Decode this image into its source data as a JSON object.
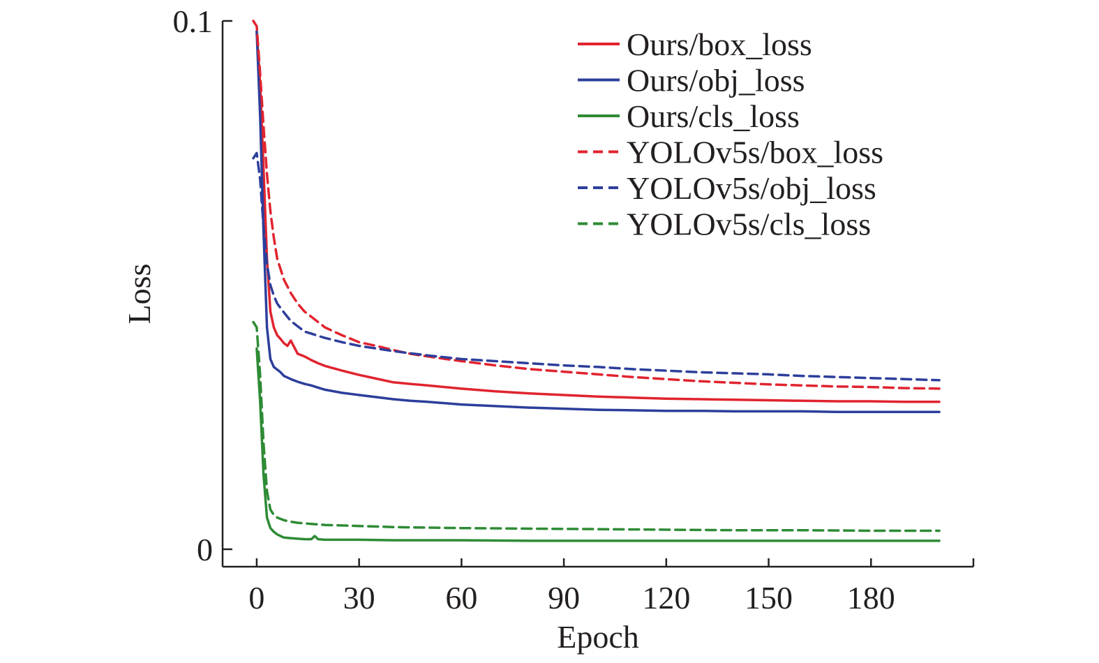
{
  "chart_data": {
    "type": "line",
    "xlabel": "Epoch",
    "ylabel": "Loss",
    "xlim": [
      -10,
      210
    ],
    "ylim": [
      -0.0035,
      0.1
    ],
    "xticks": [
      0,
      30,
      60,
      90,
      120,
      150,
      180
    ],
    "yticks": [
      {
        "value": 0,
        "label": "0"
      },
      {
        "value": 0.1,
        "label": "0.1"
      }
    ],
    "grid": false,
    "legend_position": "top-right",
    "series": [
      {
        "name": "Ours/box_loss",
        "color": "#e0242f",
        "dash": "solid",
        "x": [
          0,
          1,
          2,
          3,
          4,
          5,
          6,
          7,
          8,
          9,
          10,
          12,
          14,
          16,
          18,
          20,
          25,
          30,
          35,
          40,
          45,
          50,
          60,
          70,
          80,
          90,
          100,
          110,
          120,
          130,
          140,
          150,
          160,
          170,
          180,
          190,
          200
        ],
        "y": [
          0.098,
          0.088,
          0.072,
          0.055,
          0.045,
          0.042,
          0.0405,
          0.0398,
          0.039,
          0.0385,
          0.0395,
          0.037,
          0.0365,
          0.0358,
          0.0352,
          0.0347,
          0.0338,
          0.033,
          0.0323,
          0.0316,
          0.0313,
          0.031,
          0.0304,
          0.0299,
          0.0295,
          0.0292,
          0.0289,
          0.0287,
          0.0285,
          0.0284,
          0.0283,
          0.0282,
          0.0281,
          0.028,
          0.028,
          0.0279,
          0.0279
        ]
      },
      {
        "name": "Ours/obj_loss",
        "color": "#2d3e9b",
        "dash": "solid",
        "x": [
          0,
          1,
          2,
          3,
          4,
          5,
          6,
          7,
          8,
          10,
          12,
          14,
          16,
          18,
          20,
          25,
          30,
          35,
          40,
          45,
          50,
          60,
          70,
          80,
          90,
          100,
          110,
          120,
          130,
          140,
          150,
          160,
          170,
          180,
          190,
          200
        ],
        "y": [
          0.098,
          0.082,
          0.06,
          0.042,
          0.036,
          0.0345,
          0.034,
          0.0335,
          0.0328,
          0.0322,
          0.0317,
          0.0313,
          0.031,
          0.0306,
          0.0302,
          0.0296,
          0.0292,
          0.0288,
          0.0284,
          0.0281,
          0.0279,
          0.0274,
          0.0271,
          0.0268,
          0.0266,
          0.0264,
          0.0263,
          0.0262,
          0.0262,
          0.0261,
          0.0261,
          0.0261,
          0.026,
          0.026,
          0.026,
          0.026
        ]
      },
      {
        "name": "Ours/cls_loss",
        "color": "#2e8b35",
        "dash": "solid",
        "x": [
          0,
          1,
          2,
          3,
          4,
          5,
          6,
          7,
          8,
          10,
          12,
          14,
          16,
          17,
          18,
          20,
          25,
          30,
          40,
          50,
          60,
          80,
          100,
          120,
          140,
          160,
          180,
          200
        ],
        "y": [
          0.038,
          0.028,
          0.014,
          0.006,
          0.004,
          0.0033,
          0.0028,
          0.0025,
          0.0022,
          0.0021,
          0.002,
          0.0019,
          0.0019,
          0.0025,
          0.0019,
          0.0018,
          0.0018,
          0.0018,
          0.0017,
          0.0017,
          0.0017,
          0.0016,
          0.0016,
          0.0016,
          0.0016,
          0.0016,
          0.0016,
          0.0016
        ]
      },
      {
        "name": "YOLOv5s/box_loss",
        "color": "#e0242f",
        "dash": "dashed",
        "x": [
          -1,
          0,
          1,
          2,
          3,
          4,
          5,
          6,
          8,
          10,
          12,
          14,
          16,
          18,
          20,
          25,
          30,
          35,
          40,
          45,
          50,
          60,
          70,
          80,
          90,
          100,
          110,
          120,
          130,
          140,
          150,
          160,
          170,
          180,
          190,
          200
        ],
        "y": [
          0.1,
          0.099,
          0.09,
          0.08,
          0.071,
          0.064,
          0.059,
          0.055,
          0.051,
          0.0485,
          0.0465,
          0.045,
          0.044,
          0.043,
          0.042,
          0.0405,
          0.0392,
          0.0385,
          0.0377,
          0.037,
          0.0365,
          0.0356,
          0.0348,
          0.0341,
          0.0336,
          0.0331,
          0.0326,
          0.0322,
          0.0318,
          0.0315,
          0.0312,
          0.031,
          0.0308,
          0.0307,
          0.0305,
          0.0304
        ]
      },
      {
        "name": "YOLOv5s/obj_loss",
        "color": "#2d3e9b",
        "dash": "dashed",
        "x": [
          -1,
          0,
          1,
          2,
          3,
          4,
          5,
          6,
          8,
          10,
          12,
          14,
          16,
          18,
          20,
          25,
          30,
          35,
          40,
          45,
          50,
          60,
          70,
          80,
          90,
          100,
          110,
          120,
          130,
          140,
          150,
          160,
          170,
          180,
          190,
          200
        ],
        "y": [
          0.074,
          0.075,
          0.07,
          0.061,
          0.054,
          0.05,
          0.048,
          0.0465,
          0.0448,
          0.0432,
          0.0422,
          0.0412,
          0.0408,
          0.0404,
          0.04,
          0.0392,
          0.0385,
          0.038,
          0.0375,
          0.0371,
          0.0367,
          0.036,
          0.0356,
          0.0352,
          0.0348,
          0.0345,
          0.0341,
          0.0338,
          0.0335,
          0.0333,
          0.0331,
          0.0328,
          0.0326,
          0.0324,
          0.0322,
          0.032
        ]
      },
      {
        "name": "YOLOv5s/cls_loss",
        "color": "#2e8b35",
        "dash": "dashed",
        "x": [
          -1,
          0,
          1,
          2,
          3,
          4,
          5,
          6,
          8,
          10,
          12,
          14,
          16,
          18,
          20,
          25,
          30,
          40,
          50,
          60,
          80,
          100,
          120,
          140,
          160,
          180,
          200
        ],
        "y": [
          0.043,
          0.042,
          0.033,
          0.02,
          0.011,
          0.0075,
          0.0065,
          0.006,
          0.0055,
          0.0052,
          0.005,
          0.0049,
          0.0048,
          0.0047,
          0.0046,
          0.0045,
          0.0044,
          0.0042,
          0.0041,
          0.004,
          0.0039,
          0.0038,
          0.0037,
          0.0036,
          0.0036,
          0.0035,
          0.0035
        ]
      }
    ]
  }
}
